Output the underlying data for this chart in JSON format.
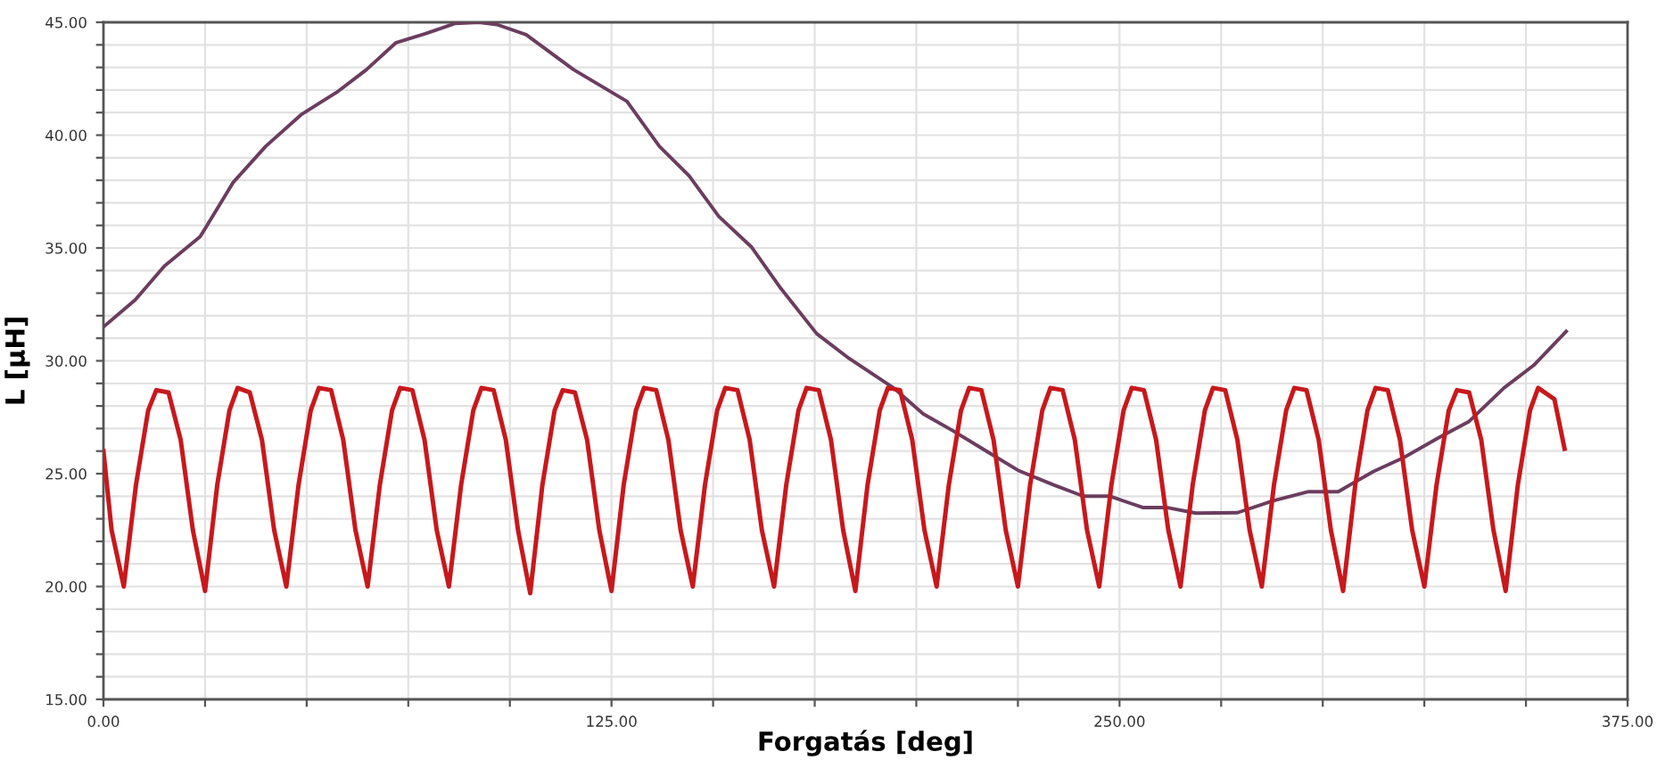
{
  "chart_data": {
    "type": "line",
    "xlabel": "Forgatás [deg]",
    "ylabel": "L [µH]",
    "xlim": [
      0,
      375
    ],
    "ylim": [
      15,
      45
    ],
    "xticks": [
      {
        "value": 0,
        "label": "0.00"
      },
      {
        "value": 25,
        "label": null
      },
      {
        "value": 50,
        "label": null
      },
      {
        "value": 75,
        "label": null
      },
      {
        "value": 100,
        "label": null
      },
      {
        "value": 125,
        "label": "125.00"
      },
      {
        "value": 150,
        "label": null
      },
      {
        "value": 175,
        "label": null
      },
      {
        "value": 200,
        "label": null
      },
      {
        "value": 225,
        "label": null
      },
      {
        "value": 250,
        "label": "250.00"
      },
      {
        "value": 275,
        "label": null
      },
      {
        "value": 300,
        "label": null
      },
      {
        "value": 325,
        "label": null
      },
      {
        "value": 350,
        "label": null
      },
      {
        "value": 375,
        "label": "375.00"
      }
    ],
    "yticks": [
      {
        "value": 15,
        "label": "15.00"
      },
      {
        "value": 16,
        "label": null
      },
      {
        "value": 17,
        "label": null
      },
      {
        "value": 18,
        "label": null
      },
      {
        "value": 19,
        "label": null
      },
      {
        "value": 20,
        "label": "20.00"
      },
      {
        "value": 21,
        "label": null
      },
      {
        "value": 22,
        "label": null
      },
      {
        "value": 23,
        "label": null
      },
      {
        "value": 24,
        "label": null
      },
      {
        "value": 25,
        "label": "25.00"
      },
      {
        "value": 26,
        "label": null
      },
      {
        "value": 27,
        "label": null
      },
      {
        "value": 28,
        "label": null
      },
      {
        "value": 29,
        "label": null
      },
      {
        "value": 30,
        "label": "30.00"
      },
      {
        "value": 31,
        "label": null
      },
      {
        "value": 32,
        "label": null
      },
      {
        "value": 33,
        "label": null
      },
      {
        "value": 34,
        "label": null
      },
      {
        "value": 35,
        "label": "35.00"
      },
      {
        "value": 36,
        "label": null
      },
      {
        "value": 37,
        "label": null
      },
      {
        "value": 38,
        "label": null
      },
      {
        "value": 39,
        "label": null
      },
      {
        "value": 40,
        "label": "40.00"
      },
      {
        "value": 41,
        "label": null
      },
      {
        "value": 42,
        "label": null
      },
      {
        "value": 43,
        "label": null
      },
      {
        "value": 44,
        "label": null
      },
      {
        "value": 45,
        "label": "45.00"
      }
    ],
    "grid": true,
    "marker": "none",
    "line_style": "solid",
    "series": [
      {
        "color": "#6b3d5f",
        "x": [
          0,
          7.8,
          15,
          23.8,
          31.9,
          39.9,
          48.6,
          57.4,
          64.7,
          72,
          79.3,
          86.5,
          92.4,
          96.8,
          104,
          115.7,
          128.8,
          136.8,
          144.1,
          151.4,
          159.4,
          166.7,
          175.5,
          183.5,
          194.4,
          201.7,
          209,
          217.7,
          225,
          233.8,
          241.1,
          247.7,
          255.7,
          261.5,
          268.8,
          279,
          287.8,
          296.5,
          303.8,
          312.5,
          319.8,
          328.6,
          335.9,
          344.6,
          351.9,
          359.9
        ],
        "values": [
          31.5,
          32.7,
          34.2,
          35.5,
          37.9,
          39.5,
          40.9,
          41.9,
          42.9,
          44.1,
          44.5,
          44.95,
          45.0,
          44.9,
          44.45,
          42.9,
          41.5,
          39.5,
          38.2,
          36.4,
          35.05,
          33.2,
          31.2,
          30.1,
          28.8,
          27.65,
          26.9,
          25.95,
          25.15,
          24.5,
          24.0,
          24.0,
          23.5,
          23.5,
          23.25,
          23.27,
          23.8,
          24.2,
          24.2,
          25.1,
          25.7,
          26.6,
          27.3,
          28.8,
          29.8,
          31.3
        ]
      },
      {
        "color": "#c8181c",
        "x": [
          0,
          2,
          5,
          8,
          11,
          13,
          16,
          19,
          22,
          25,
          28,
          31,
          33,
          36,
          39,
          42,
          45,
          48,
          51,
          53,
          56,
          59,
          62,
          65,
          68,
          71,
          73,
          76,
          79,
          82,
          85,
          88,
          91,
          93,
          96,
          99,
          102,
          105,
          108,
          111,
          113,
          116,
          119,
          122,
          125,
          128,
          131,
          133,
          136,
          139,
          142,
          145,
          148,
          151,
          153,
          156,
          159,
          162,
          165,
          168,
          171,
          173,
          176,
          179,
          182,
          185,
          188,
          191,
          193,
          196,
          199,
          202,
          205,
          208,
          211,
          213,
          216,
          219,
          222,
          225,
          228,
          231,
          233,
          236,
          239,
          242,
          245,
          248,
          251,
          253,
          256,
          259,
          262,
          265,
          268,
          271,
          273,
          276,
          279,
          282,
          285,
          288,
          291,
          293,
          296,
          299,
          302,
          305,
          308,
          311,
          313,
          316,
          319,
          322,
          325,
          328,
          331,
          333,
          336,
          339,
          342,
          345,
          348,
          351,
          353,
          357,
          359.5
        ],
        "values": [
          26.0,
          22.5,
          20.0,
          24.5,
          27.8,
          28.7,
          28.6,
          26.5,
          22.5,
          19.8,
          24.5,
          27.8,
          28.8,
          28.6,
          26.5,
          22.5,
          20.0,
          24.5,
          27.8,
          28.8,
          28.7,
          26.5,
          22.5,
          20.0,
          24.5,
          27.8,
          28.8,
          28.7,
          26.5,
          22.5,
          20.0,
          24.5,
          27.8,
          28.8,
          28.7,
          26.5,
          22.5,
          19.7,
          24.5,
          27.8,
          28.7,
          28.6,
          26.5,
          22.5,
          19.8,
          24.5,
          27.8,
          28.8,
          28.7,
          26.5,
          22.5,
          20.0,
          24.5,
          27.8,
          28.8,
          28.7,
          26.5,
          22.5,
          20.0,
          24.5,
          27.8,
          28.8,
          28.7,
          26.5,
          22.5,
          19.8,
          24.5,
          27.8,
          28.8,
          28.7,
          26.5,
          22.5,
          20.0,
          24.5,
          27.8,
          28.8,
          28.7,
          26.5,
          22.5,
          20.0,
          24.5,
          27.8,
          28.8,
          28.7,
          26.5,
          22.5,
          20.0,
          24.5,
          27.8,
          28.8,
          28.7,
          26.5,
          22.5,
          20.0,
          24.5,
          27.8,
          28.8,
          28.7,
          26.5,
          22.5,
          20.0,
          24.5,
          27.8,
          28.8,
          28.7,
          26.5,
          22.5,
          19.8,
          24.5,
          27.8,
          28.8,
          28.7,
          26.5,
          22.5,
          20.0,
          24.5,
          27.8,
          28.7,
          28.6,
          26.5,
          22.5,
          19.8,
          24.5,
          27.8,
          28.8,
          28.3,
          26.1
        ]
      }
    ]
  }
}
